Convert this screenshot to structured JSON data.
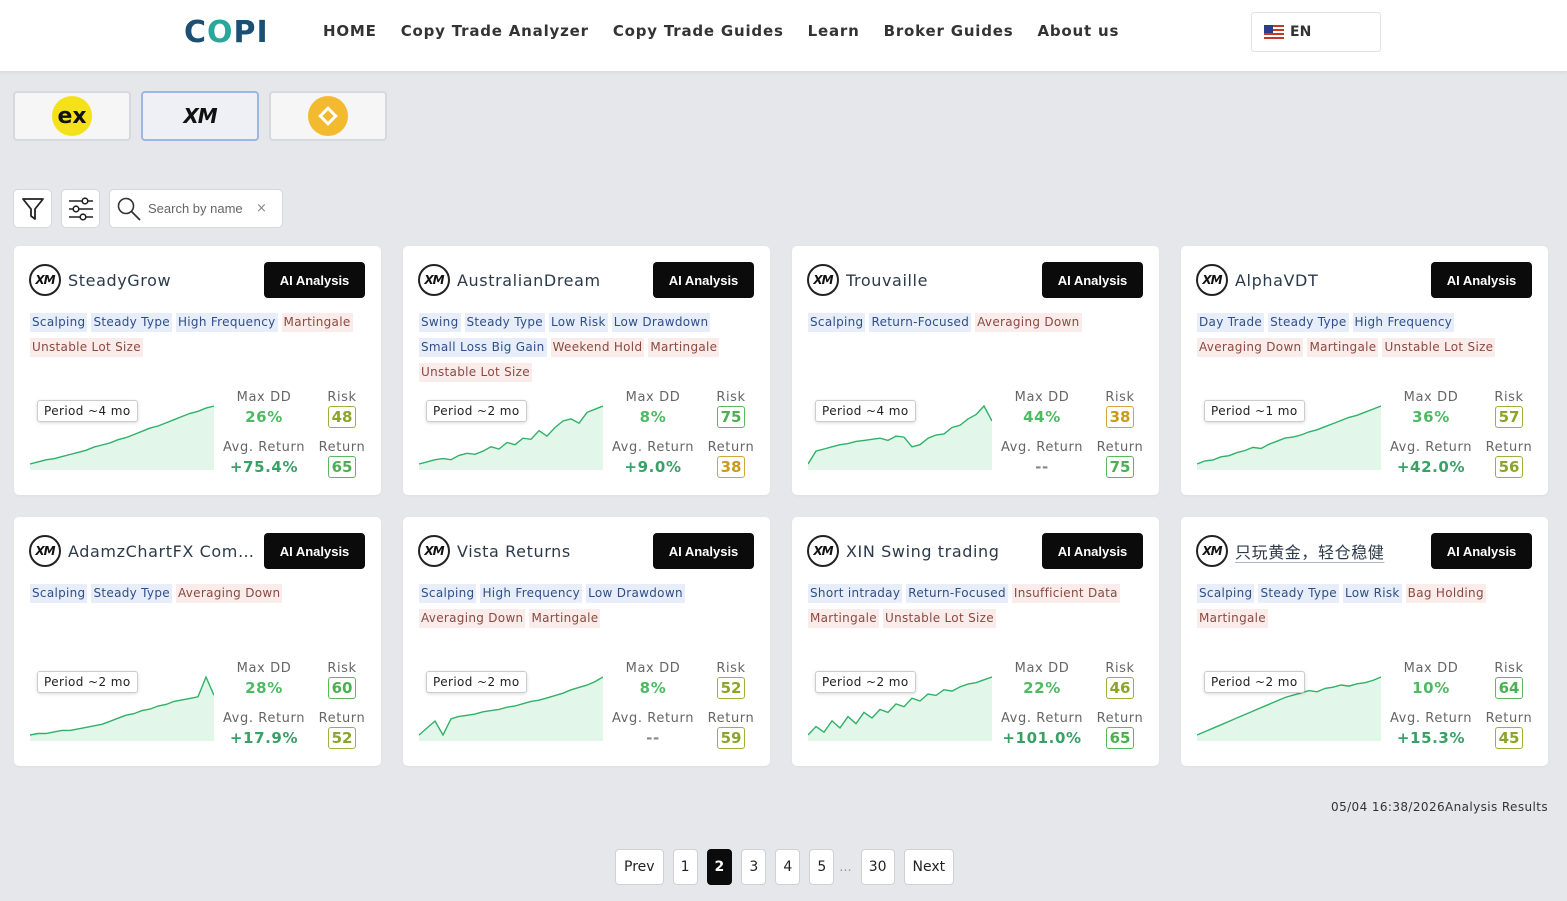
{
  "header": {
    "logo_text": "COPI",
    "nav": [
      "HOME",
      "Copy Trade Analyzer",
      "Copy Trade Guides",
      "Learn",
      "Broker Guides",
      "About us"
    ],
    "language": "EN"
  },
  "brokers": [
    {
      "name": "ex",
      "logo": "exness-logo"
    },
    {
      "name": "XM",
      "logo": "xm-logo"
    },
    {
      "name": "",
      "logo": "binance-logo"
    }
  ],
  "toolbar": {
    "search_placeholder": "Search by name",
    "clear": "×"
  },
  "labels": {
    "ai_button": "AI Analysis",
    "max_dd": "Max DD",
    "risk": "Risk",
    "avg_return": "Avg. Return",
    "return": "Return"
  },
  "cards": [
    {
      "name": "SteadyGrow",
      "period": "Period ~4 mo",
      "max_dd": "26%",
      "risk": "48",
      "avg_return": "+75.4%",
      "return": "65",
      "tags": [
        {
          "t": "Scalping",
          "c": "b"
        },
        {
          "t": "Steady Type",
          "c": "b"
        },
        {
          "t": "High Frequency",
          "c": "b"
        },
        {
          "t": "Martingale",
          "c": "r"
        },
        {
          "t": "Unstable Lot Size",
          "c": "r"
        }
      ],
      "curve": [
        2,
        4,
        6,
        7,
        9,
        11,
        13,
        15,
        18,
        20,
        22,
        25,
        27,
        30,
        33,
        36,
        38,
        41,
        44,
        47,
        50,
        52,
        55,
        57
      ]
    },
    {
      "name": "AustralianDream",
      "period": "Period ~2 mo",
      "max_dd": "8%",
      "risk": "75",
      "avg_return": "+9.0%",
      "return": "38",
      "tags": [
        {
          "t": "Swing",
          "c": "b"
        },
        {
          "t": "Steady Type",
          "c": "b"
        },
        {
          "t": "Low Risk",
          "c": "b"
        },
        {
          "t": "Low Drawdown",
          "c": "b"
        },
        {
          "t": "Small Loss Big Gain",
          "c": "b"
        },
        {
          "t": "Weekend Hold",
          "c": "r"
        },
        {
          "t": "Martingale",
          "c": "r"
        },
        {
          "t": "Unstable Lot Size",
          "c": "r"
        }
      ],
      "curve": [
        4,
        6,
        8,
        9,
        8,
        12,
        14,
        13,
        16,
        20,
        18,
        24,
        22,
        28,
        27,
        35,
        30,
        38,
        44,
        46,
        42,
        52,
        55,
        58
      ]
    },
    {
      "name": "Trouvaille",
      "period": "Period ~4 mo",
      "max_dd": "44%",
      "risk": "38",
      "avg_return": "--",
      "return": "75",
      "tags": [
        {
          "t": "Scalping",
          "c": "b"
        },
        {
          "t": "Return-Focused",
          "c": "b"
        },
        {
          "t": "Averaging Down",
          "c": "r"
        }
      ],
      "curve": [
        2,
        14,
        16,
        18,
        20,
        21,
        23,
        24,
        25,
        26,
        24,
        28,
        27,
        18,
        20,
        26,
        29,
        30,
        36,
        38,
        44,
        48,
        56,
        42
      ]
    },
    {
      "name": "AlphaVDT",
      "period": "Period ~1 mo",
      "max_dd": "36%",
      "risk": "57",
      "avg_return": "+42.0%",
      "return": "56",
      "tags": [
        {
          "t": "Day Trade",
          "c": "b"
        },
        {
          "t": "Steady Type",
          "c": "b"
        },
        {
          "t": "High Frequency",
          "c": "b"
        },
        {
          "t": "Averaging Down",
          "c": "r"
        },
        {
          "t": "Martingale",
          "c": "r"
        },
        {
          "t": "Unstable Lot Size",
          "c": "r"
        }
      ],
      "curve": [
        2,
        5,
        6,
        9,
        10,
        13,
        15,
        18,
        17,
        21,
        24,
        27,
        28,
        30,
        33,
        35,
        38,
        41,
        44,
        47,
        49,
        52,
        55,
        58
      ]
    },
    {
      "name": "AdamzChartFX Community",
      "period": "Period ~2 mo",
      "max_dd": "28%",
      "risk": "60",
      "avg_return": "+17.9%",
      "return": "52",
      "tags": [
        {
          "t": "Scalping",
          "c": "b"
        },
        {
          "t": "Steady Type",
          "c": "b"
        },
        {
          "t": "Averaging Down",
          "c": "r"
        }
      ],
      "curve": [
        2,
        3,
        3,
        4,
        5,
        5,
        6,
        7,
        8,
        9,
        11,
        13,
        15,
        16,
        18,
        19,
        21,
        22,
        24,
        25,
        26,
        27,
        40,
        28
      ]
    },
    {
      "name": "Vista Returns",
      "period": "Period ~2 mo",
      "max_dd": "8%",
      "risk": "52",
      "avg_return": "--",
      "return": "59",
      "tags": [
        {
          "t": "Scalping",
          "c": "b"
        },
        {
          "t": "High Frequency",
          "c": "b"
        },
        {
          "t": "Low Drawdown",
          "c": "b"
        },
        {
          "t": "Averaging Down",
          "c": "r"
        },
        {
          "t": "Martingale",
          "c": "r"
        }
      ],
      "curve": [
        4,
        10,
        16,
        4,
        18,
        20,
        21,
        22,
        24,
        25,
        26,
        28,
        29,
        31,
        33,
        34,
        36,
        38,
        40,
        43,
        45,
        47,
        50,
        54
      ]
    },
    {
      "name": "XIN Swing trading",
      "period": "Period ~2 mo",
      "max_dd": "22%",
      "risk": "46",
      "avg_return": "+101.0%",
      "return": "65",
      "tags": [
        {
          "t": "Short intraday",
          "c": "b"
        },
        {
          "t": "Return-Focused",
          "c": "b"
        },
        {
          "t": "Insufficient Data",
          "c": "r"
        },
        {
          "t": "Martingale",
          "c": "r"
        },
        {
          "t": "Unstable Lot Size",
          "c": "r"
        }
      ],
      "curve": [
        4,
        10,
        6,
        14,
        9,
        17,
        12,
        20,
        16,
        22,
        20,
        26,
        24,
        30,
        28,
        33,
        32,
        36,
        35,
        38,
        40,
        41,
        43,
        45
      ]
    },
    {
      "name": "只玩黄金，轻仓稳健",
      "period": "Period ~2 mo",
      "max_dd": "10%",
      "risk": "64",
      "avg_return": "+15.3%",
      "return": "45",
      "tags": [
        {
          "t": "Scalping",
          "c": "b"
        },
        {
          "t": "Steady Type",
          "c": "b"
        },
        {
          "t": "Low Risk",
          "c": "b"
        },
        {
          "t": "Bag Holding",
          "c": "r"
        },
        {
          "t": "Martingale",
          "c": "r"
        }
      ],
      "curve": [
        2,
        5,
        8,
        11,
        14,
        17,
        20,
        23,
        26,
        29,
        32,
        35,
        37,
        39,
        41,
        40,
        43,
        44,
        46,
        45,
        47,
        48,
        50,
        53
      ]
    }
  ],
  "timestamp": "05/04 16:38/2026Analysis Results",
  "pagination": {
    "prev": "Prev",
    "pages": [
      "1",
      "2",
      "3",
      "4",
      "5"
    ],
    "ellipsis": "...",
    "last": "30",
    "next": "Next",
    "current": "2"
  },
  "colors": {
    "accent": "#0b0b0b",
    "positive": "#4cbb62",
    "spark_line": "#2fb267",
    "spark_fill": "#e3f6ea",
    "tag_blue_bg": "#e7eefa",
    "tag_red_bg": "#fbecec"
  }
}
